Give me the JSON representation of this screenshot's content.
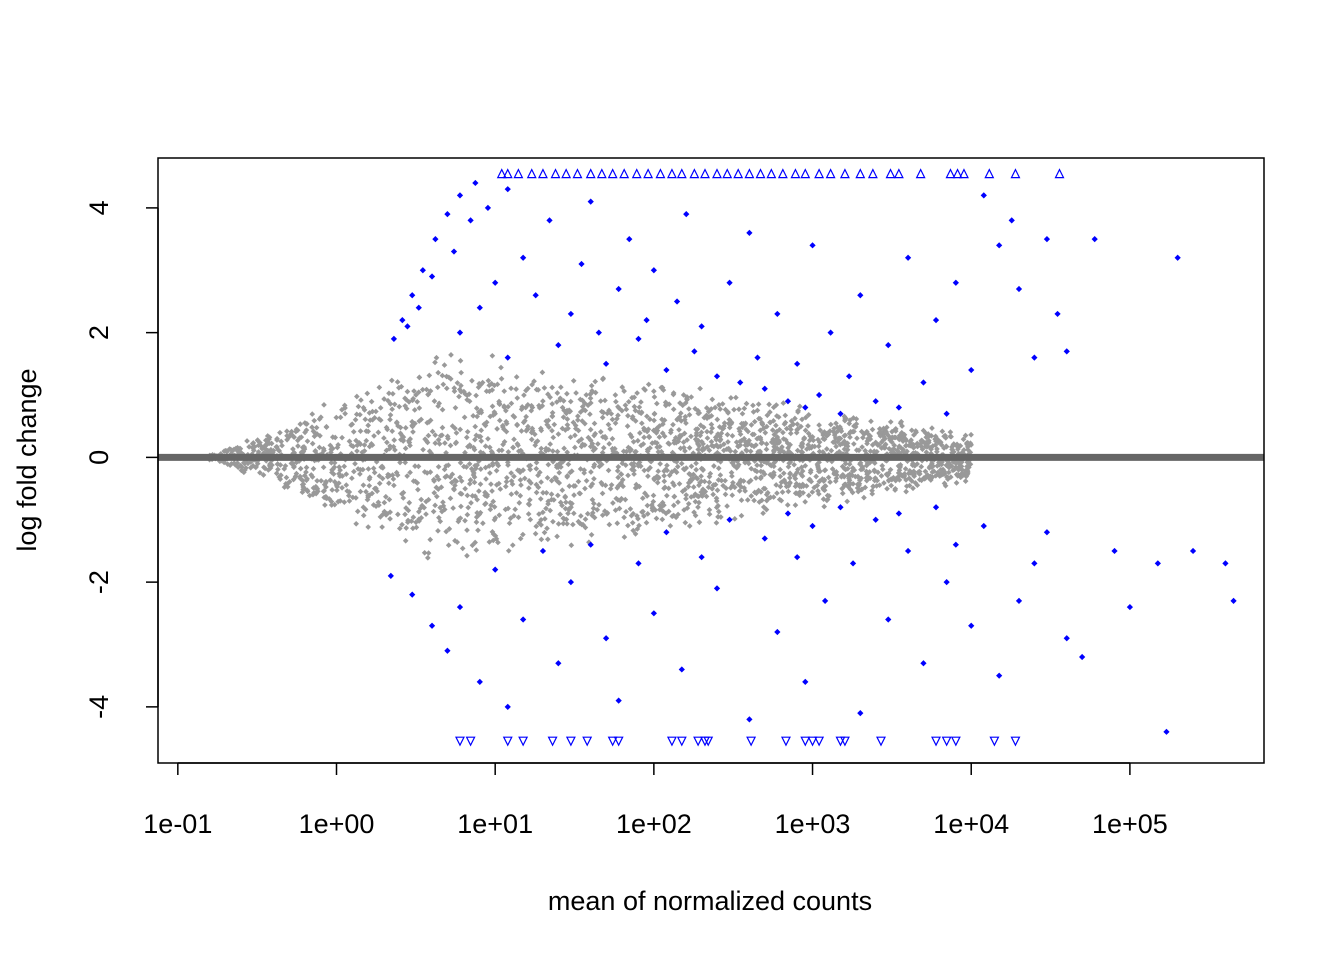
{
  "chart_data": {
    "type": "scatter",
    "title": "",
    "xlabel": "mean of normalized counts",
    "ylabel": "log fold change",
    "x_scale": "log10",
    "xlim": [
      0.075,
      700000
    ],
    "ylim": [
      -4.9,
      4.8
    ],
    "x_ticks": [
      0.1,
      1,
      10,
      100,
      1000,
      10000,
      100000
    ],
    "x_tick_labels": [
      "1e-01",
      "1e+00",
      "1e+01",
      "1e+02",
      "1e+03",
      "1e+04",
      "1e+05"
    ],
    "y_ticks": [
      -4,
      -2,
      0,
      2,
      4
    ],
    "y_tick_labels": [
      "-4",
      "-2",
      "0",
      "2",
      "4"
    ],
    "reference_line": {
      "y": 0,
      "color": "#666666"
    },
    "colors": {
      "not_significant": "#999999",
      "significant": "#0000ff"
    },
    "clip": {
      "upper": 4.55,
      "lower": -4.55
    },
    "series": [
      {
        "role": "significant",
        "points": [
          [
            2.3,
            1.9
          ],
          [
            2.6,
            2.2
          ],
          [
            3.0,
            2.6
          ],
          [
            3.5,
            3.0
          ],
          [
            4.2,
            3.5
          ],
          [
            5.0,
            3.9
          ],
          [
            6.0,
            4.2
          ],
          [
            7.5,
            4.4
          ],
          [
            2.8,
            2.1
          ],
          [
            3.3,
            2.4
          ],
          [
            4.0,
            2.9
          ],
          [
            5.5,
            3.3
          ],
          [
            7.0,
            3.8
          ],
          [
            9.0,
            4.0
          ],
          [
            12,
            4.3
          ],
          [
            6,
            2.0
          ],
          [
            8,
            2.4
          ],
          [
            10,
            2.8
          ],
          [
            12,
            1.6
          ],
          [
            15,
            3.2
          ],
          [
            18,
            2.6
          ],
          [
            22,
            3.8
          ],
          [
            25,
            1.8
          ],
          [
            30,
            2.3
          ],
          [
            35,
            3.1
          ],
          [
            40,
            4.1
          ],
          [
            45,
            2.0
          ],
          [
            50,
            1.5
          ],
          [
            60,
            2.7
          ],
          [
            70,
            3.5
          ],
          [
            80,
            1.9
          ],
          [
            90,
            2.2
          ],
          [
            100,
            3.0
          ],
          [
            120,
            1.4
          ],
          [
            140,
            2.5
          ],
          [
            160,
            3.9
          ],
          [
            180,
            1.7
          ],
          [
            200,
            2.1
          ],
          [
            250,
            1.3
          ],
          [
            300,
            2.8
          ],
          [
            350,
            1.2
          ],
          [
            400,
            3.6
          ],
          [
            450,
            1.6
          ],
          [
            500,
            1.1
          ],
          [
            600,
            2.3
          ],
          [
            700,
            0.9
          ],
          [
            800,
            1.5
          ],
          [
            900,
            0.8
          ],
          [
            1000,
            3.4
          ],
          [
            1100,
            1.0
          ],
          [
            1300,
            2.0
          ],
          [
            1500,
            0.7
          ],
          [
            1700,
            1.3
          ],
          [
            2000,
            2.6
          ],
          [
            2500,
            0.9
          ],
          [
            3000,
            1.8
          ],
          [
            3500,
            0.8
          ],
          [
            4000,
            3.2
          ],
          [
            5000,
            1.2
          ],
          [
            6000,
            2.2
          ],
          [
            7000,
            0.7
          ],
          [
            8000,
            2.8
          ],
          [
            10000,
            1.4
          ],
          [
            12000,
            4.2
          ],
          [
            15000,
            3.4
          ],
          [
            18000,
            3.8
          ],
          [
            20000,
            2.7
          ],
          [
            25000,
            1.6
          ],
          [
            30000,
            3.5
          ],
          [
            35000,
            2.3
          ],
          [
            40000,
            1.7
          ],
          [
            60000,
            3.5
          ],
          [
            200000,
            3.2
          ],
          [
            2.2,
            -1.9
          ],
          [
            3,
            -2.2
          ],
          [
            4,
            -2.7
          ],
          [
            5,
            -3.1
          ],
          [
            6,
            -2.4
          ],
          [
            8,
            -3.6
          ],
          [
            10,
            -1.8
          ],
          [
            12,
            -4.0
          ],
          [
            15,
            -2.6
          ],
          [
            20,
            -1.5
          ],
          [
            25,
            -3.3
          ],
          [
            30,
            -2.0
          ],
          [
            40,
            -1.4
          ],
          [
            50,
            -2.9
          ],
          [
            60,
            -3.9
          ],
          [
            80,
            -1.7
          ],
          [
            100,
            -2.5
          ],
          [
            120,
            -1.2
          ],
          [
            150,
            -3.4
          ],
          [
            200,
            -1.6
          ],
          [
            250,
            -2.1
          ],
          [
            300,
            -1.0
          ],
          [
            400,
            -4.2
          ],
          [
            500,
            -1.3
          ],
          [
            600,
            -2.8
          ],
          [
            700,
            -0.9
          ],
          [
            800,
            -1.6
          ],
          [
            900,
            -3.6
          ],
          [
            1000,
            -1.1
          ],
          [
            1200,
            -2.3
          ],
          [
            1500,
            -0.8
          ],
          [
            1800,
            -1.7
          ],
          [
            2000,
            -4.1
          ],
          [
            2500,
            -1.0
          ],
          [
            3000,
            -2.6
          ],
          [
            3500,
            -0.9
          ],
          [
            4000,
            -1.5
          ],
          [
            5000,
            -3.3
          ],
          [
            6000,
            -0.8
          ],
          [
            7000,
            -2.0
          ],
          [
            8000,
            -1.4
          ],
          [
            10000,
            -2.7
          ],
          [
            12000,
            -1.1
          ],
          [
            15000,
            -3.5
          ],
          [
            20000,
            -2.3
          ],
          [
            25000,
            -1.7
          ],
          [
            30000,
            -1.2
          ],
          [
            40000,
            -2.9
          ],
          [
            50000,
            -3.2
          ],
          [
            80000,
            -1.5
          ],
          [
            100000,
            -2.4
          ],
          [
            150000,
            -1.7
          ],
          [
            170000,
            -4.4
          ],
          [
            250000,
            -1.5
          ],
          [
            400000,
            -1.7
          ],
          [
            450000,
            -2.3
          ]
        ]
      }
    ],
    "clipped_markers": {
      "upper_x": [
        11,
        12,
        14,
        17,
        20,
        24,
        28,
        33,
        40,
        47,
        55,
        65,
        78,
        92,
        110,
        130,
        150,
        180,
        210,
        250,
        290,
        340,
        400,
        470,
        550,
        650,
        780,
        900,
        1100,
        1300,
        1600,
        2000,
        2400,
        3100,
        3500,
        4800,
        7400,
        8200,
        9000,
        13000,
        19000,
        36000
      ],
      "lower_x": [
        6,
        7,
        12,
        15,
        23,
        30,
        38,
        55,
        60,
        130,
        150,
        190,
        210,
        220,
        410,
        680,
        900,
        1000,
        1100,
        1500,
        1600,
        2700,
        6000,
        7000,
        8000,
        14000,
        19000
      ]
    }
  }
}
